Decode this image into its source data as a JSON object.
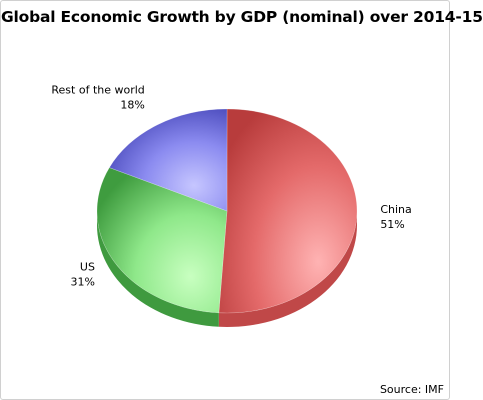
{
  "chart_data": {
    "type": "pie",
    "title": "Global Economic Growth by GDP (nominal) over 2014-15",
    "slices": [
      {
        "name": "China",
        "value": 51,
        "label": "51%",
        "color": "#e06666"
      },
      {
        "name": "US",
        "value": 31,
        "label": "31%",
        "color": "#66cc66"
      },
      {
        "name": "Rest of the world",
        "value": 18,
        "label": "18%",
        "color": "#7777dd"
      }
    ],
    "legend": "none",
    "three_d": true,
    "source": "Source: IMF"
  }
}
